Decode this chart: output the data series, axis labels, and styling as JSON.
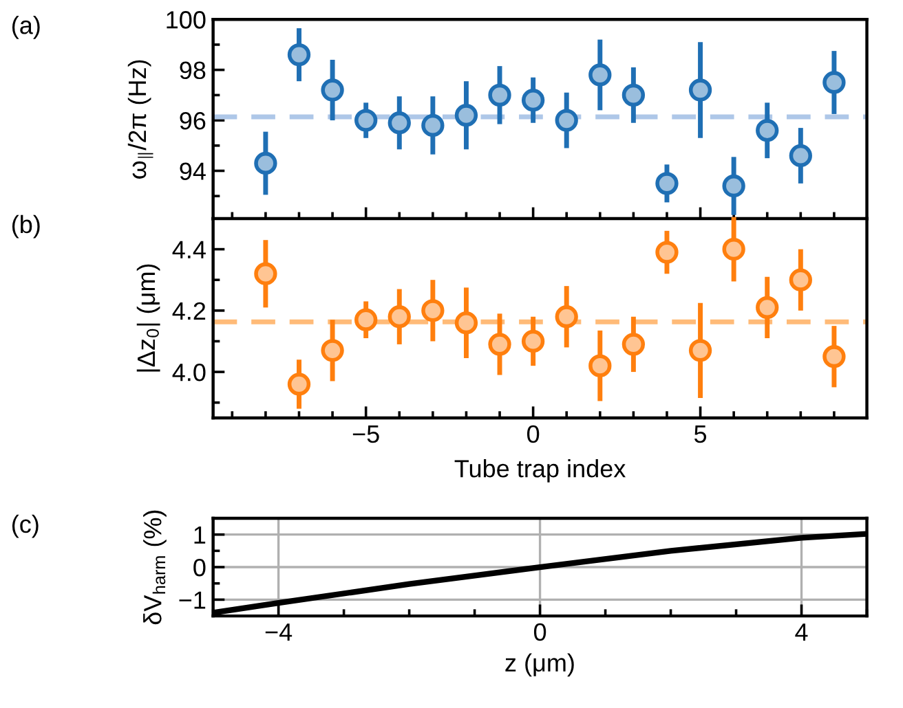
{
  "chart_data": [
    {
      "type": "scatter",
      "ylabel": "ω$_{∥}$/2π (Hz)",
      "annotations": [
        "(a)"
      ],
      "x": [
        -8,
        -7,
        -6,
        -5,
        -4,
        -3,
        -2,
        -1,
        0,
        1,
        2,
        3,
        4,
        5,
        6,
        7,
        8,
        9
      ],
      "series": [
        {
          "color": "#1f6fb4",
          "values": [
            94.3,
            98.6,
            97.2,
            96.0,
            95.9,
            95.8,
            96.2,
            97.0,
            96.8,
            96.0,
            97.8,
            97.0,
            93.5,
            97.2,
            93.4,
            95.6,
            94.6,
            97.5
          ],
          "errors": [
            1.25,
            1.05,
            1.2,
            0.7,
            1.05,
            1.15,
            1.35,
            1.15,
            0.9,
            1.1,
            1.4,
            1.1,
            0.75,
            1.9,
            1.15,
            1.1,
            1.1,
            1.25
          ]
        }
      ],
      "marker": "circle",
      "xlim": [
        -9.57,
        9.98
      ],
      "xticks": [
        -5,
        0,
        5
      ],
      "ylim": [
        92.1,
        100
      ],
      "yticks": [
        94,
        96,
        98,
        100
      ],
      "tick_labels": "y",
      "ref_lines": [
        {
          "axis": "y",
          "value": 96.14,
          "color": "#aec7e8",
          "line_style": "dashed"
        }
      ],
      "grid": false,
      "legend": false
    },
    {
      "type": "scatter",
      "ylabel": "|Δz$_{0}$| (μm)",
      "xlabel": "Tube trap index",
      "annotations": [
        "(b)"
      ],
      "x": [
        -8,
        -7,
        -6,
        -5,
        -4,
        -3,
        -2,
        -1,
        0,
        1,
        2,
        3,
        4,
        5,
        6,
        7,
        8,
        9
      ],
      "series": [
        {
          "color": "#ff7f0e",
          "values": [
            4.32,
            3.96,
            4.07,
            4.17,
            4.18,
            4.2,
            4.16,
            4.09,
            4.1,
            4.18,
            4.02,
            4.09,
            4.39,
            4.07,
            4.4,
            4.21,
            4.3,
            4.05
          ],
          "errors": [
            0.11,
            0.08,
            0.1,
            0.06,
            0.09,
            0.1,
            0.115,
            0.1,
            0.08,
            0.1,
            0.115,
            0.09,
            0.07,
            0.155,
            0.105,
            0.1,
            0.1,
            0.1
          ]
        }
      ],
      "marker": "circle",
      "xlim": [
        -9.57,
        9.98
      ],
      "xticks": [
        -5,
        0,
        5
      ],
      "ylim": [
        3.85,
        4.5
      ],
      "yticks": [
        {
          "value": 4.0,
          "label": "4.0"
        },
        {
          "value": 4.2,
          "label": "4.2"
        },
        {
          "value": 4.4,
          "label": "4.4"
        }
      ],
      "ref_lines": [
        {
          "axis": "y",
          "value": 4.163,
          "color": "#ffbb78",
          "line_style": "dashed"
        }
      ],
      "grid": false,
      "legend": false
    },
    {
      "type": "line",
      "ylabel": "δV$_{harm}$ (%)",
      "xlabel": "z (μm)",
      "annotations": [
        "(c)"
      ],
      "series": [
        {
          "color": "#000000",
          "x": [
            -5,
            -4,
            -2,
            0,
            2,
            4,
            5
          ],
          "values": [
            -1.4,
            -1.1,
            -0.52,
            0,
            0.5,
            0.9,
            1.02
          ]
        }
      ],
      "marker": "none",
      "line_style": "solid",
      "xlim": [
        -5,
        5
      ],
      "xticks": [
        -4,
        0,
        4
      ],
      "ylim": [
        -1.5,
        1.5
      ],
      "yticks": [
        -1,
        0,
        1
      ],
      "grid": true,
      "legend": false
    }
  ]
}
